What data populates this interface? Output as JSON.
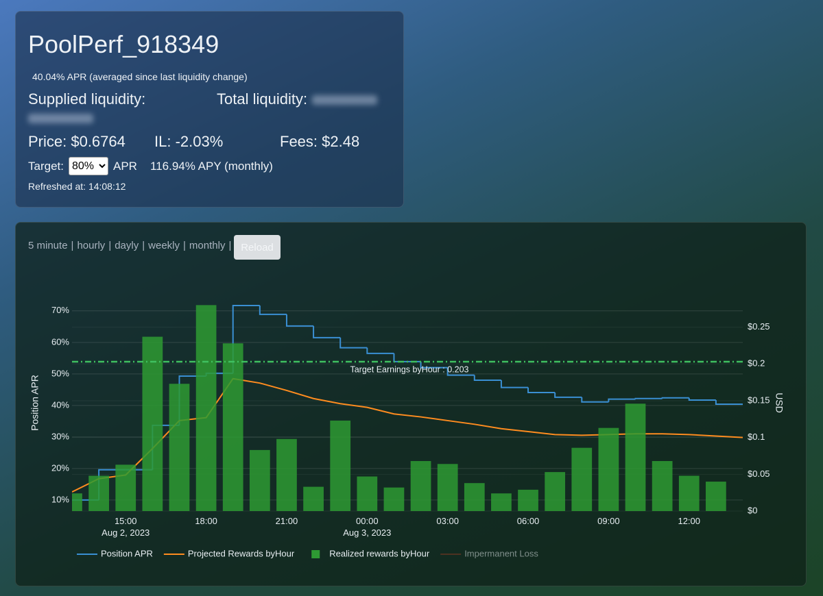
{
  "header": {
    "title": "PoolPerf_918349",
    "apr_note": "40.04% APR (averaged since last liquidity change)",
    "supplied_label": "Supplied liquidity:",
    "total_label": "Total liquidity:",
    "price": "Price: $0.6764",
    "il": "IL: -2.03%",
    "fees": "Fees: $2.48",
    "target_label": "Target:",
    "target_select": "80%",
    "target_unit": "APR",
    "apy": "116.94% APY (monthly)",
    "refreshed": "Refreshed at: 14:08:12"
  },
  "toolbar": {
    "periods": [
      "5 minute",
      "hourly",
      "dayly",
      "weekly",
      "monthly"
    ],
    "separator": "|",
    "button": "Reload"
  },
  "chart_data": {
    "type": "combo",
    "x": [
      "2023-08-02 13:00",
      "2023-08-02 14:00",
      "2023-08-02 15:00",
      "2023-08-02 16:00",
      "2023-08-02 17:00",
      "2023-08-02 18:00",
      "2023-08-02 19:00",
      "2023-08-02 20:00",
      "2023-08-02 21:00",
      "2023-08-02 22:00",
      "2023-08-02 23:00",
      "2023-08-03 00:00",
      "2023-08-03 01:00",
      "2023-08-03 02:00",
      "2023-08-03 03:00",
      "2023-08-03 04:00",
      "2023-08-03 05:00",
      "2023-08-03 06:00",
      "2023-08-03 07:00",
      "2023-08-03 08:00",
      "2023-08-03 09:00",
      "2023-08-03 10:00",
      "2023-08-03 11:00",
      "2023-08-03 12:00",
      "2023-08-03 13:00",
      "2023-08-03 14:00"
    ],
    "xlim": [
      "2023-08-02 13:00",
      "2023-08-03 14:00"
    ],
    "xticks": [
      {
        "value": "2023-08-02 15:00",
        "label": "15:00\nAug 2, 2023"
      },
      {
        "value": "2023-08-02 18:00",
        "label": "18:00"
      },
      {
        "value": "2023-08-02 21:00",
        "label": "21:00"
      },
      {
        "value": "2023-08-03 00:00",
        "label": "00:00\nAug 3, 2023"
      },
      {
        "value": "2023-08-03 03:00",
        "label": "03:00"
      },
      {
        "value": "2023-08-03 06:00",
        "label": "06:00"
      },
      {
        "value": "2023-08-03 09:00",
        "label": "09:00"
      },
      {
        "value": "2023-08-03 12:00",
        "label": "12:00"
      }
    ],
    "ylabel": "Position APR",
    "y2label": "USD",
    "ylim": [
      6.5,
      73
    ],
    "yticks": [
      {
        "value": 10,
        "label": "10%"
      },
      {
        "value": 20,
        "label": "20%"
      },
      {
        "value": 30,
        "label": "30%"
      },
      {
        "value": 40,
        "label": "40%"
      },
      {
        "value": 50,
        "label": "50%"
      },
      {
        "value": 60,
        "label": "60%"
      },
      {
        "value": 70,
        "label": "70%"
      }
    ],
    "y2lim": [
      0,
      0.285
    ],
    "y2ticks": [
      {
        "value": 0,
        "label": "$0"
      },
      {
        "value": 0.05,
        "label": "$0.05"
      },
      {
        "value": 0.1,
        "label": "$0.1"
      },
      {
        "value": 0.15,
        "label": "$0.15"
      },
      {
        "value": 0.2,
        "label": "$0.2"
      },
      {
        "value": 0.25,
        "label": "$0.25"
      }
    ],
    "grid": true,
    "series": [
      {
        "name": "Position APR",
        "type": "line",
        "shape": "hv",
        "color": "#3a8fd3",
        "values": [
          10.0,
          19.6,
          19.6,
          33.7,
          49.3,
          50.2,
          71.7,
          68.9,
          65.2,
          61.5,
          58.3,
          56.5,
          53.9,
          52.0,
          49.6,
          48.0,
          45.7,
          44.1,
          42.6,
          41.1,
          42.0,
          42.2,
          42.4,
          41.7,
          40.4,
          40.4
        ]
      },
      {
        "name": "Projected Rewards byHour",
        "type": "line",
        "axis": "y2",
        "color": "#ff8c1f",
        "values": [
          0.026,
          0.044,
          0.049,
          0.085,
          0.123,
          0.127,
          0.18,
          0.174,
          0.164,
          0.153,
          0.146,
          0.141,
          0.132,
          0.128,
          0.123,
          0.118,
          0.112,
          0.108,
          0.104,
          0.103,
          0.104,
          0.105,
          0.105,
          0.104,
          0.102,
          0.1
        ]
      },
      {
        "name": "Realized rewards byHour",
        "type": "bar",
        "axis": "y2",
        "color": "#2e9a33",
        "values": [
          0.024,
          0.048,
          0.063,
          0.237,
          0.173,
          0.28,
          0.228,
          0.083,
          0.098,
          0.033,
          0.123,
          0.047,
          0.032,
          0.068,
          0.064,
          0.038,
          0.024,
          0.029,
          0.053,
          0.086,
          0.113,
          0.146,
          0.068,
          0.048,
          0.04,
          null
        ]
      },
      {
        "name": "Impermanent Loss",
        "type": "line",
        "axis": "y2",
        "color": "#8a3a22",
        "visible": false
      }
    ],
    "target": {
      "value": 0.203,
      "label": "Target Earnings byHour : 0.203",
      "color": "#3fc060"
    }
  }
}
